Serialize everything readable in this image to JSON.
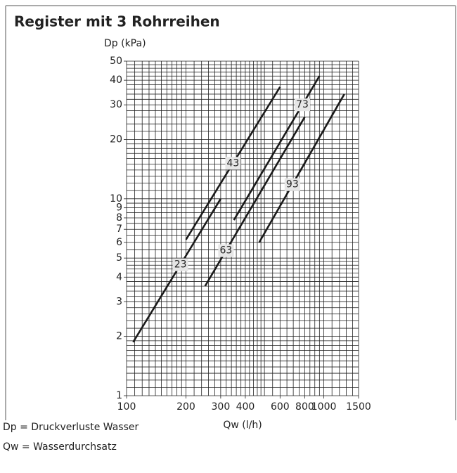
{
  "chart_data": {
    "type": "line",
    "title": "Register mit 3 Rohrreihen",
    "y_label": "Dp (kPa)",
    "x_label": "Qw (l/h)",
    "log_x": true,
    "log_y": true,
    "grid": true,
    "color": "#1a1a1a",
    "xlim": [
      100,
      1500
    ],
    "ylim": [
      1,
      50
    ],
    "xticks": [
      100,
      200,
      300,
      400,
      600,
      800,
      1000,
      1500
    ],
    "yticks": [
      1,
      2,
      3,
      4,
      5,
      6,
      7,
      8,
      9,
      10,
      20,
      30,
      40,
      50
    ],
    "xgrid": [
      100,
      110,
      120,
      130,
      140,
      150,
      160,
      170,
      180,
      190,
      200,
      220,
      240,
      260,
      280,
      300,
      320,
      340,
      360,
      380,
      400,
      420,
      440,
      460,
      480,
      500,
      550,
      600,
      650,
      700,
      750,
      800,
      850,
      900,
      950,
      1000,
      1100,
      1200,
      1300,
      1400,
      1500
    ],
    "ygrid": [
      1,
      1.1,
      1.2,
      1.3,
      1.4,
      1.5,
      1.6,
      1.7,
      1.8,
      1.9,
      2,
      2.2,
      2.4,
      2.6,
      2.8,
      3,
      3.2,
      3.4,
      3.6,
      3.8,
      4,
      4.2,
      4.4,
      4.6,
      4.8,
      5,
      5.5,
      6,
      6.5,
      7,
      7.5,
      8,
      8.5,
      9,
      9.5,
      10,
      11,
      12,
      13,
      14,
      15,
      16,
      17,
      18,
      19,
      20,
      22,
      24,
      26,
      28,
      30,
      32,
      34,
      36,
      38,
      40,
      42,
      44,
      46,
      48,
      50
    ],
    "series": [
      {
        "name": "23",
        "x": [
          108,
          300
        ],
        "values": [
          1.87,
          10
        ]
      },
      {
        "name": "43",
        "x": [
          200,
          600
        ],
        "values": [
          6.2,
          37
        ]
      },
      {
        "name": "63",
        "x": [
          250,
          800
        ],
        "values": [
          3.6,
          26
        ]
      },
      {
        "name": "73",
        "x": [
          350,
          950
        ],
        "values": [
          7.8,
          42
        ]
      },
      {
        "name": "93",
        "x": [
          470,
          1270
        ],
        "values": [
          6.0,
          34
        ]
      }
    ],
    "notes": [
      "Dp = Druckverluste Wasser",
      "Qw = Wasserdurchsatz"
    ]
  }
}
